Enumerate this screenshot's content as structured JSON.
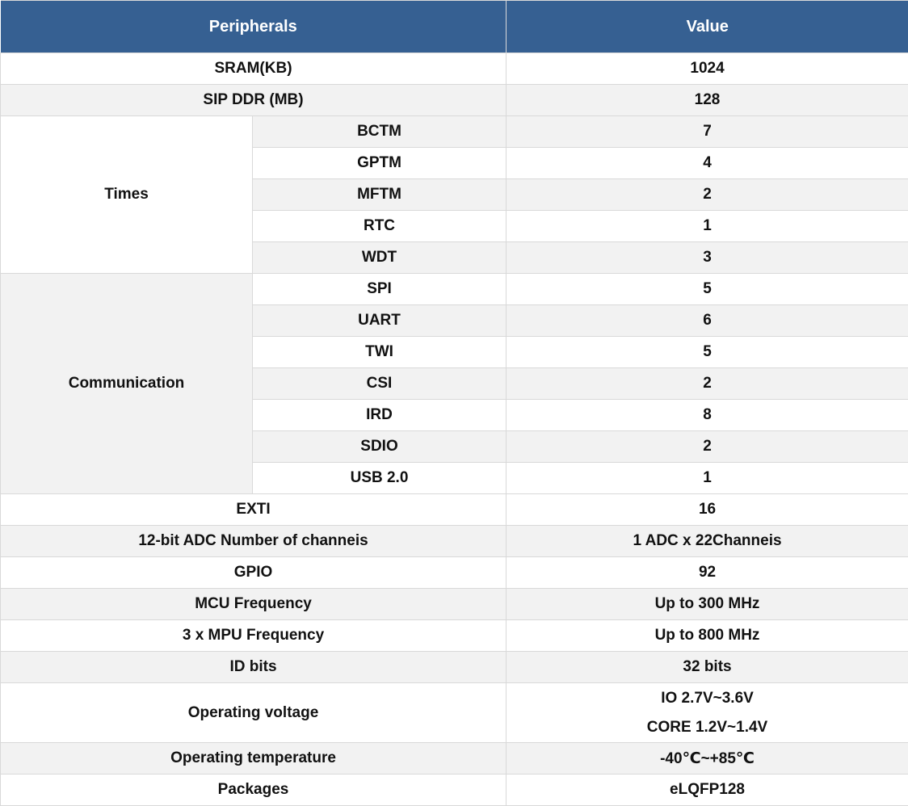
{
  "table": {
    "header": {
      "peripherals_label": "Peripherals",
      "value_label": "Value"
    },
    "colors": {
      "header_bg": "#366092",
      "header_text": "#ffffff",
      "stripe_bg": "#f2f2f2",
      "row_bg": "#ffffff",
      "border": "#d9d9d9",
      "text": "#111111"
    },
    "sections": [
      {
        "type": "simple",
        "label": "SRAM(KB)",
        "value": "1024",
        "shade": false
      },
      {
        "type": "simple",
        "label": "SIP DDR (MB)",
        "value": "128",
        "shade": true
      },
      {
        "type": "group",
        "label": "Times",
        "shade": false,
        "items": [
          {
            "label": "BCTM",
            "value": "7",
            "shade": true
          },
          {
            "label": "GPTM",
            "value": "4",
            "shade": false
          },
          {
            "label": "MFTM",
            "value": "2",
            "shade": true
          },
          {
            "label": "RTC",
            "value": "1",
            "shade": false
          },
          {
            "label": "WDT",
            "value": "3",
            "shade": true
          }
        ]
      },
      {
        "type": "group",
        "label": "Communication",
        "shade": true,
        "items": [
          {
            "label": "SPI",
            "value": "5",
            "shade": false
          },
          {
            "label": "UART",
            "value": "6",
            "shade": true
          },
          {
            "label": "TWI",
            "value": "5",
            "shade": false
          },
          {
            "label": "CSI",
            "value": "2",
            "shade": true
          },
          {
            "label": "IRD",
            "value": "8",
            "shade": false
          },
          {
            "label": "SDIO",
            "value": "2",
            "shade": true
          },
          {
            "label": "USB 2.0",
            "value": "1",
            "shade": false
          }
        ]
      },
      {
        "type": "simple",
        "label": "EXTI",
        "value": "16",
        "shade": false
      },
      {
        "type": "simple",
        "label": "12-bit ADC Number of channeis",
        "value": "1 ADC x 22Channeis",
        "shade": true
      },
      {
        "type": "simple",
        "label": "GPIO",
        "value": "92",
        "shade": false
      },
      {
        "type": "simple",
        "label": "MCU Frequency",
        "value": "Up to 300 MHz",
        "shade": true
      },
      {
        "type": "simple",
        "label": "3 x MPU Frequency",
        "value": "Up to 800 MHz",
        "shade": false
      },
      {
        "type": "simple",
        "label": "ID bits",
        "value": "32 bits",
        "shade": true
      },
      {
        "type": "simple",
        "label": "Operating voltage",
        "value_lines": [
          "IO 2.7V~3.6V",
          "CORE 1.2V~1.4V"
        ],
        "shade": false,
        "tall": true
      },
      {
        "type": "simple",
        "label": "Operating temperature",
        "value": "-40℃~+85℃",
        "shade": true
      },
      {
        "type": "simple",
        "label": "Packages",
        "value": "eLQFP128",
        "shade": false
      }
    ]
  }
}
